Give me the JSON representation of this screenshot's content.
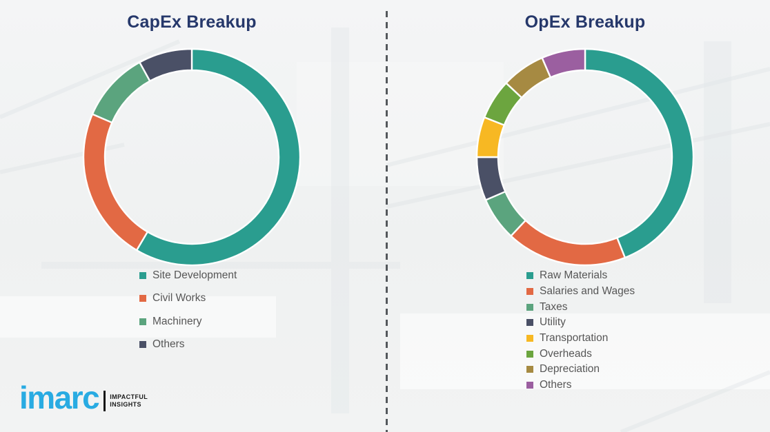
{
  "page": {
    "background_color": "#f0f2f2",
    "title_color": "#26386B",
    "legend_text_color": "#565656",
    "divider_color": "#54585c",
    "segment_gap_color": "#ffffff"
  },
  "chart_data": [
    {
      "type": "pie",
      "subtype": "donut",
      "title": "CapEx Breakup",
      "legend_position": "bottom-left",
      "value_labels_shown": false,
      "note": "No numeric labels shown in image; percentages estimated from arc angles.",
      "labels": [
        "Site Development",
        "Civil Works",
        "Machinery",
        "Others"
      ],
      "values_percent": [
        58.5,
        23,
        10.5,
        8
      ],
      "colors": [
        "#2A9D8F",
        "#E26944",
        "#5BA47E",
        "#4A5066"
      ],
      "start_angle_deg": 0,
      "direction": "clockwise"
    },
    {
      "type": "pie",
      "subtype": "donut",
      "title": "OpEx Breakup",
      "legend_position": "bottom-left",
      "value_labels_shown": false,
      "note": "No numeric labels shown in image; percentages estimated from arc angles.",
      "labels": [
        "Raw Materials",
        "Salaries and Wages",
        "Taxes",
        "Utility",
        "Transportation",
        "Overheads",
        "Depreciation",
        "Others"
      ],
      "values_percent": [
        44,
        18,
        6.5,
        6.5,
        6,
        6,
        6.5,
        6.5
      ],
      "colors": [
        "#2A9D8F",
        "#E26944",
        "#5BA47E",
        "#4A5066",
        "#F7B823",
        "#6CA53F",
        "#A68A42",
        "#9B5FA0"
      ],
      "start_angle_deg": 0,
      "direction": "clockwise"
    }
  ],
  "logo": {
    "brand": "imarc",
    "brand_color": "#29ABE2",
    "tagline_line1": "IMPACTFUL",
    "tagline_line2": "INSIGHTS"
  }
}
